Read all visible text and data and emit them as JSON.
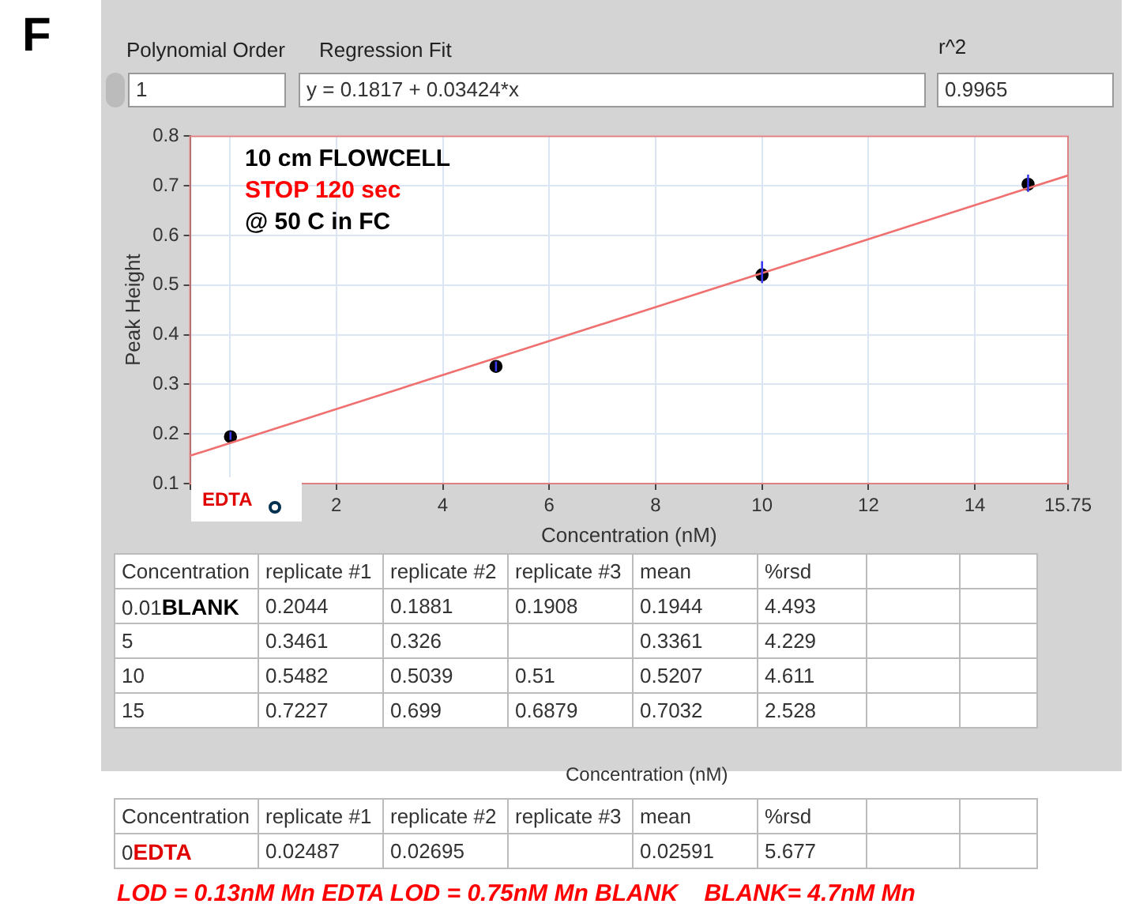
{
  "chart_data": {
    "type": "scatter",
    "xlabel": "Concentration (nM)",
    "ylabel": "Peak Height",
    "xlim": [
      -0.75,
      15.75
    ],
    "xticks": [
      {
        "value": -0.75,
        "label": null
      },
      {
        "value": 0,
        "label": null
      },
      2,
      4,
      6,
      8,
      10,
      12,
      14,
      15.75
    ],
    "ylim": [
      0.1,
      0.8
    ],
    "yticks": [
      0.1,
      0.2,
      0.3,
      0.4,
      0.5,
      0.6,
      0.7,
      0.8
    ],
    "grid": true,
    "legend": false,
    "marker": "circle",
    "series": [
      {
        "color": "#000000",
        "x": [
          0.01,
          5,
          10,
          15
        ],
        "values": [
          0.1944,
          0.3361,
          0.5207,
          0.7032
        ],
        "errors": [
          [
            0.1881,
            0.2044
          ],
          [
            0.326,
            0.3461
          ],
          [
            0.5039,
            0.5482
          ],
          [
            0.6879,
            0.7227
          ]
        ]
      },
      {
        "type": "line",
        "color": "#f07070",
        "marker": "none",
        "x": [
          -0.75,
          15.75
        ],
        "values": [
          0.156,
          0.721
        ]
      }
    ],
    "annotations": [
      "F",
      "Polynomial Order",
      "1",
      "Regression Fit",
      "y = 0.1817 + 0.03424*x",
      "r^2",
      "0.9965",
      "10 cm FLOWCELL",
      "STOP 120 sec",
      "@ 50 C in FC",
      "EDTA",
      "Concentration",
      "replicate #1",
      "replicate #2",
      "replicate #3",
      "mean",
      "%rsd",
      "0.01",
      "BLANK",
      "0.2044",
      "0.1881",
      "0.1908",
      "0.1944",
      "4.493",
      "5",
      "0.3461",
      "0.326",
      "0.3361",
      "4.229",
      "10",
      "0.5482",
      "0.5039",
      "0.51",
      "0.5207",
      "4.611",
      "15",
      "0.7227",
      "0.699",
      "0.6879",
      "0.7032",
      "2.528",
      "Concentration (nM)",
      "Concentration",
      "replicate #1",
      "replicate #2",
      "replicate #3",
      "mean",
      "%rsd",
      "0",
      "EDTA",
      "0.02487",
      "0.02695",
      "0.02591",
      "5.677",
      "LOD = 0.13nM Mn EDTA LOD = 0.75nM Mn BLANK    BLANK= 4.7nM Mn"
    ]
  }
}
